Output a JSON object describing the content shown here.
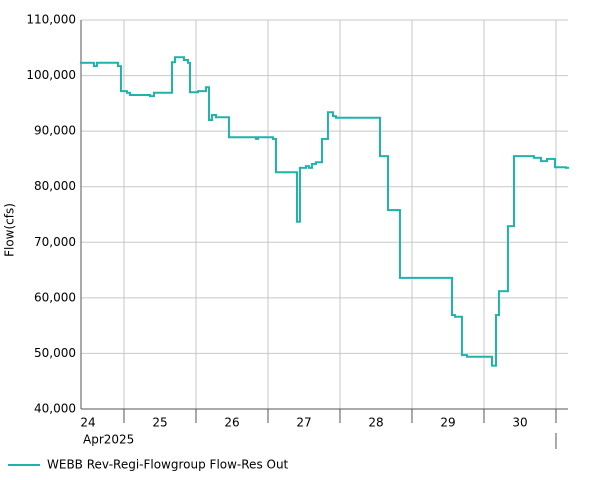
{
  "chart_data": {
    "type": "step",
    "ylabel": "Flow(cfs)",
    "x_sublabel": "Apr2025",
    "xlim": [
      24.403,
      31.167
    ],
    "xticks": [
      {
        "value": 24.5,
        "label": "24"
      },
      {
        "value": 25.5,
        "label": "25"
      },
      {
        "value": 26.5,
        "label": "26"
      },
      {
        "value": 27.5,
        "label": "27"
      },
      {
        "value": 28.5,
        "label": "28"
      },
      {
        "value": 29.5,
        "label": "29"
      },
      {
        "value": 30.5,
        "label": "30"
      }
    ],
    "xgrid": [
      25,
      26,
      27,
      28,
      29,
      30,
      31
    ],
    "ylim": [
      40000,
      110000
    ],
    "yticks": [
      {
        "value": 40000,
        "label": "40,000"
      },
      {
        "value": 50000,
        "label": "50,000"
      },
      {
        "value": 60000,
        "label": "60,000"
      },
      {
        "value": 70000,
        "label": "70,000"
      },
      {
        "value": 80000,
        "label": "80,000"
      },
      {
        "value": 90000,
        "label": "90,000"
      },
      {
        "value": 100000,
        "label": "100,000"
      },
      {
        "value": 110000,
        "label": "110,000"
      }
    ],
    "grid": true,
    "legend": "bottom",
    "x": [
      24.403,
      24.583,
      24.625,
      24.917,
      24.958,
      25.042,
      25.083,
      25.361,
      25.417,
      25.667,
      25.708,
      25.833,
      25.889,
      25.917,
      26.028,
      26.139,
      26.181,
      26.222,
      26.278,
      26.458,
      26.833,
      26.861,
      27.069,
      27.111,
      27.403,
      27.444,
      27.528,
      27.569,
      27.611,
      27.667,
      27.75,
      27.833,
      27.903,
      27.944,
      28.556,
      28.667,
      28.833,
      29.556,
      29.597,
      29.694,
      29.764,
      30.111,
      30.167,
      30.208,
      30.333,
      30.417,
      30.694,
      30.792,
      30.875,
      30.986,
      31.139
    ],
    "series": [
      {
        "name": "WEBB Rev-Regi-Flowgroup Flow-Res Out",
        "color": "#1fb3ac",
        "values": [
          102300,
          101700,
          102300,
          101700,
          97200,
          96900,
          96500,
          96300,
          96900,
          102400,
          103300,
          102800,
          102300,
          97000,
          97200,
          97900,
          92000,
          92900,
          92500,
          88900,
          88600,
          88900,
          88600,
          82600,
          73700,
          83400,
          83700,
          83400,
          84100,
          84400,
          88600,
          93400,
          92700,
          92400,
          85500,
          75800,
          63600,
          56900,
          56600,
          49700,
          49400,
          47800,
          56900,
          61200,
          72900,
          85500,
          85200,
          84600,
          85000,
          83500,
          83400
        ]
      }
    ]
  }
}
